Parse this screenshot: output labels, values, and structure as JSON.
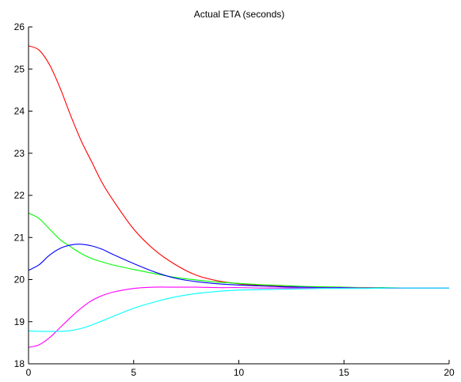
{
  "chart_data": {
    "type": "line",
    "title": "Actual ETA (seconds)",
    "xlabel": "",
    "ylabel": "",
    "xlim": [
      0,
      20
    ],
    "ylim": [
      18,
      26
    ],
    "xticks": [
      0,
      5,
      10,
      15,
      20
    ],
    "yticks": [
      18,
      19,
      20,
      21,
      22,
      23,
      24,
      25,
      26
    ],
    "grid": false,
    "legend": "none",
    "x": [
      0,
      0.5,
      1,
      1.5,
      2,
      2.5,
      3,
      3.5,
      4,
      5,
      6,
      7,
      8,
      9,
      10,
      11,
      12,
      13,
      14,
      15,
      16,
      17,
      18,
      19,
      20
    ],
    "series": [
      {
        "color": "#ff0000",
        "values": [
          25.55,
          25.45,
          25.1,
          24.55,
          23.9,
          23.3,
          22.8,
          22.3,
          21.9,
          21.2,
          20.7,
          20.35,
          20.1,
          19.97,
          19.9,
          19.86,
          19.84,
          19.83,
          19.82,
          19.81,
          19.81,
          19.8,
          19.8,
          19.8,
          19.8
        ]
      },
      {
        "color": "#00ff00",
        "values": [
          21.58,
          21.45,
          21.2,
          20.95,
          20.78,
          20.62,
          20.5,
          20.42,
          20.35,
          20.24,
          20.14,
          20.05,
          19.99,
          19.94,
          19.91,
          19.88,
          19.86,
          19.84,
          19.83,
          19.82,
          19.81,
          19.81,
          19.8,
          19.8,
          19.8
        ]
      },
      {
        "color": "#0000ff",
        "values": [
          20.22,
          20.35,
          20.58,
          20.74,
          20.82,
          20.84,
          20.8,
          20.72,
          20.6,
          20.38,
          20.18,
          20.03,
          19.95,
          19.9,
          19.87,
          19.85,
          19.83,
          19.82,
          19.81,
          19.81,
          19.8,
          19.8,
          19.8,
          19.8,
          19.8
        ]
      },
      {
        "color": "#ff00ff",
        "values": [
          18.39,
          18.45,
          18.62,
          18.86,
          19.1,
          19.32,
          19.5,
          19.62,
          19.7,
          19.79,
          19.82,
          19.82,
          19.82,
          19.81,
          19.81,
          19.8,
          19.8,
          19.8,
          19.8,
          19.8,
          19.8,
          19.8,
          19.8,
          19.8,
          19.8
        ]
      },
      {
        "color": "#00ffff",
        "values": [
          18.78,
          18.77,
          18.77,
          18.77,
          18.79,
          18.84,
          18.92,
          19.02,
          19.12,
          19.32,
          19.47,
          19.59,
          19.67,
          19.72,
          19.75,
          19.76,
          19.77,
          19.78,
          19.79,
          19.79,
          19.79,
          19.8,
          19.8,
          19.8,
          19.8
        ]
      }
    ]
  }
}
